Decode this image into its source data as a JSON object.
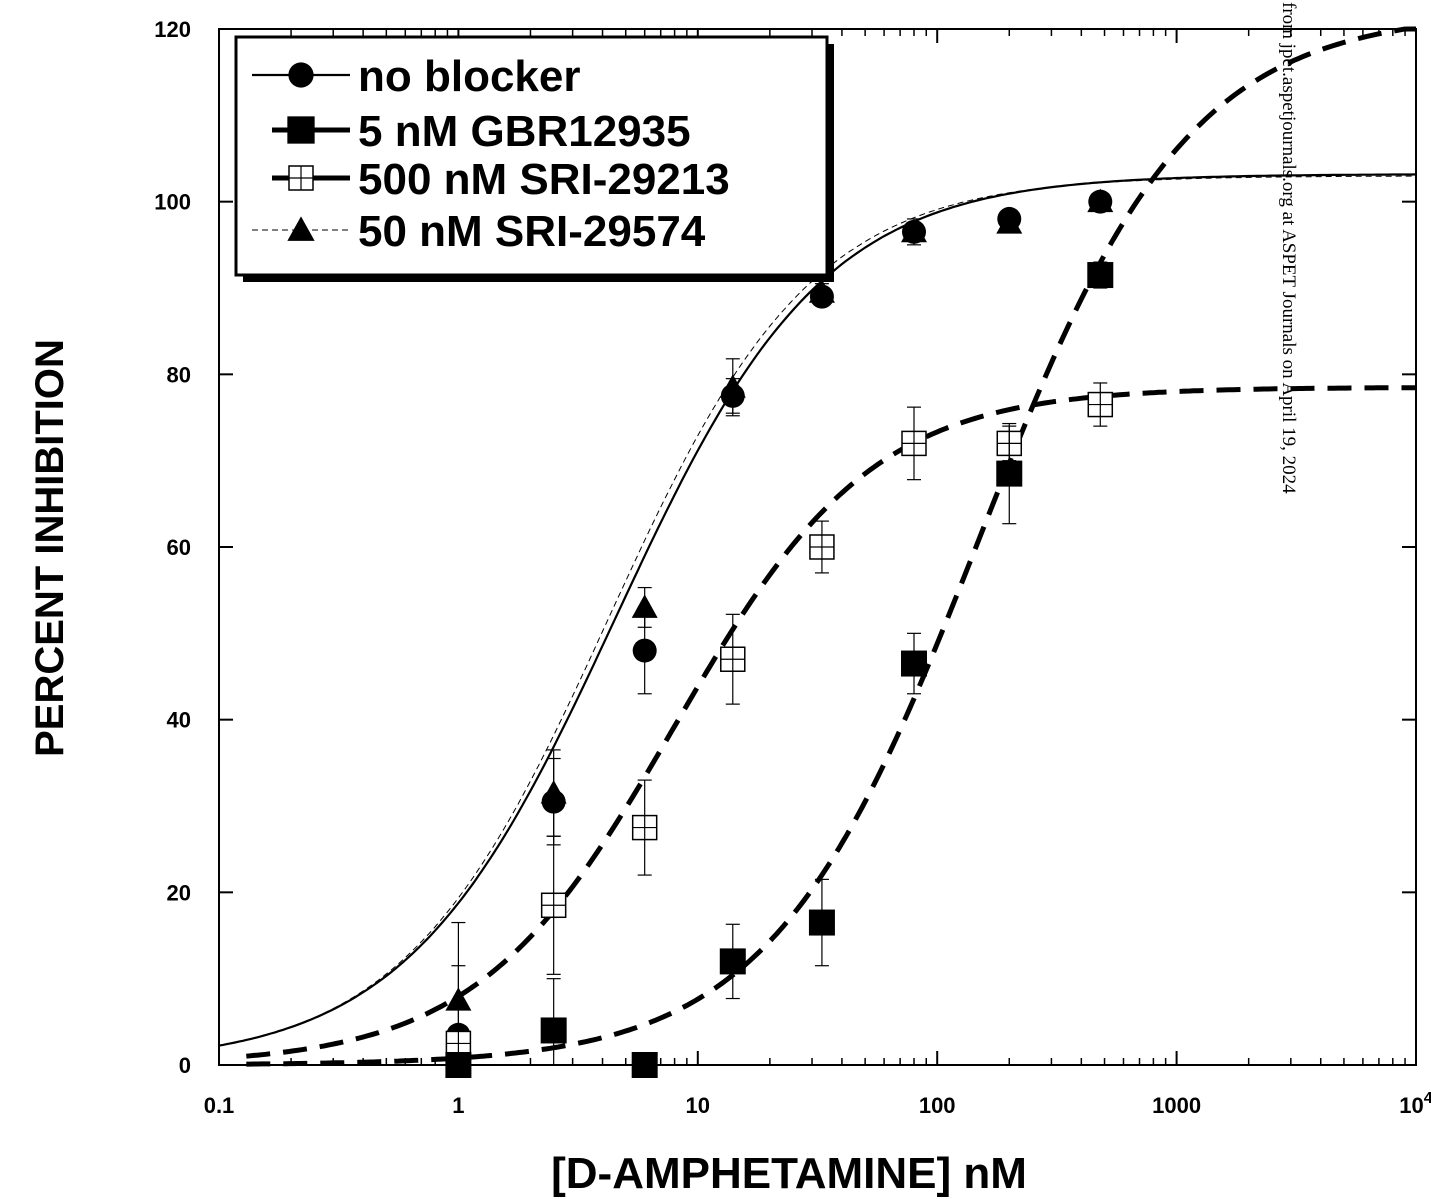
{
  "chart_data": {
    "type": "scatter",
    "xlabel": "[D-AMPHETAMINE] nM",
    "ylabel": "PERCENT INHIBITION",
    "xscale": "log",
    "xlim": [
      0.1,
      10000
    ],
    "ylim": [
      0,
      120
    ],
    "xticks": [
      {
        "value": 0.1,
        "label": "0.1"
      },
      {
        "value": 1,
        "label": "1"
      },
      {
        "value": 10,
        "label": "10"
      },
      {
        "value": 100,
        "label": "100"
      },
      {
        "value": 1000,
        "label": "1000"
      },
      {
        "value": 10000,
        "label": "10",
        "sup": "4"
      }
    ],
    "yticks": [
      0,
      20,
      40,
      60,
      80,
      100,
      120
    ],
    "grid": false,
    "legend_position": "top-left",
    "watermark": "from jpet.aspetjournals.org at ASPET Journals on April 19, 2024",
    "series": [
      {
        "name": "no blocker",
        "marker": "filled-circle",
        "line": "solid",
        "points": [
          {
            "x": 1,
            "y": 3.5,
            "err": 13
          },
          {
            "x": 2.5,
            "y": 30.5,
            "err": 5
          },
          {
            "x": 6,
            "y": 48,
            "err": 5
          },
          {
            "x": 14,
            "y": 77.5,
            "err": 2
          },
          {
            "x": 33,
            "y": 89,
            "err": 1
          },
          {
            "x": 80,
            "y": 96.5,
            "err": 1.5
          },
          {
            "x": 200,
            "y": 98,
            "err": 1
          },
          {
            "x": 480,
            "y": 100,
            "err": 0.5
          }
        ],
        "fit": {
          "top": 103.2,
          "ec50": 4.5,
          "hill": 1.0
        }
      },
      {
        "name": "5 nM GBR12935",
        "marker": "filled-square",
        "line": "dashed",
        "points": [
          {
            "x": 1,
            "y": 0,
            "err": 0
          },
          {
            "x": 2.5,
            "y": 4,
            "err": 6
          },
          {
            "x": 6,
            "y": 0,
            "err": 0
          },
          {
            "x": 14,
            "y": 12,
            "err": 4.3
          },
          {
            "x": 33,
            "y": 16.5,
            "err": 5
          },
          {
            "x": 80,
            "y": 46.5,
            "err": 3.5
          },
          {
            "x": 200,
            "y": 68.5,
            "err": 5.8
          },
          {
            "x": 480,
            "y": 91.5,
            "err": 1.5
          }
        ],
        "fit": {
          "top": 122,
          "ec50": 150,
          "hill": 1.0
        }
      },
      {
        "name": "500 nM SRI-29213",
        "marker": "open-square-cross",
        "line": "dashed",
        "points": [
          {
            "x": 1,
            "y": 2.5,
            "err": 2
          },
          {
            "x": 2.5,
            "y": 18.5,
            "err": 8
          },
          {
            "x": 6,
            "y": 27.5,
            "err": 5.5
          },
          {
            "x": 14,
            "y": 47,
            "err": 5.2
          },
          {
            "x": 33,
            "y": 60,
            "err": 3
          },
          {
            "x": 80,
            "y": 72,
            "err": 4.2
          },
          {
            "x": 200,
            "y": 72,
            "err": 2
          },
          {
            "x": 480,
            "y": 76.5,
            "err": 2.5
          }
        ],
        "fit": {
          "top": 78.5,
          "ec50": 8,
          "hill": 1.05
        }
      },
      {
        "name": "50 nM SRI-29574",
        "marker": "filled-triangle",
        "line": "thin-dashed",
        "points": [
          {
            "x": 1,
            "y": 7.5,
            "err": 4
          },
          {
            "x": 2.5,
            "y": 31.5,
            "err": 5
          },
          {
            "x": 6,
            "y": 53,
            "err": 2.3
          },
          {
            "x": 14,
            "y": 78.5,
            "err": 3.3
          },
          {
            "x": 33,
            "y": 89.5,
            "err": 1
          },
          {
            "x": 80,
            "y": 96.5,
            "err": 1
          },
          {
            "x": 200,
            "y": 97.5,
            "err": 0.5
          },
          {
            "x": 480,
            "y": 100,
            "err": 0.5
          }
        ],
        "fit": {
          "top": 103,
          "ec50": 4.2,
          "hill": 1.02
        }
      }
    ]
  }
}
